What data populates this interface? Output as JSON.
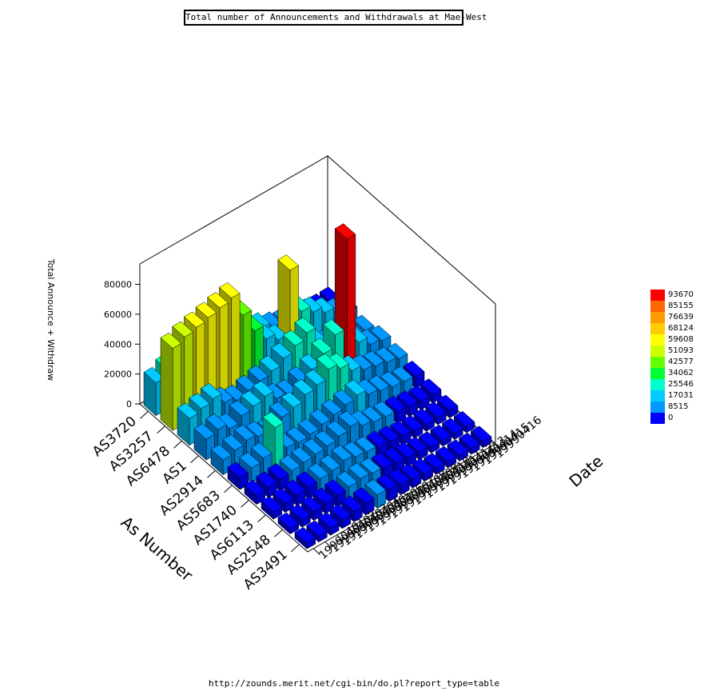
{
  "chart_data": {
    "type": "bar3d",
    "title": "Total number of Announcements and Withdrawals at Mae-West",
    "x_axis_label": "As Number",
    "y_axis_label": "Date",
    "z_axis_label": "Total Announce + Withdraw",
    "as_numbers": [
      "AS3720",
      "AS3257",
      "AS6478",
      "AS1",
      "AS2914",
      "AS5683",
      "AS1740",
      "AS6113",
      "AS2548",
      "AS3491"
    ],
    "dates": [
      "19990401",
      "19990402",
      "19990403",
      "19990404",
      "19990405",
      "19990406",
      "19990407",
      "19990408",
      "19990409",
      "19990410",
      "19990411",
      "19990412",
      "19990413",
      "19990414",
      "19990415",
      "19990416"
    ],
    "z_ticks": [
      "0",
      "20000",
      "40000",
      "60000",
      "80000"
    ],
    "zlim": [
      0,
      93670
    ],
    "colorbar": {
      "values": [
        "93670",
        "85155",
        "76639",
        "68124",
        "59608",
        "51093",
        "42577",
        "34062",
        "25546",
        "17031",
        "8515",
        "0"
      ],
      "colors": [
        "#ff0000",
        "#ff6600",
        "#ff9900",
        "#ffcc00",
        "#ffff00",
        "#ccff00",
        "#66ff00",
        "#00ff33",
        "#00ffcc",
        "#00ccff",
        "#0099ff",
        "#0000ff"
      ]
    },
    "values": [
      [
        22000,
        26000,
        30000,
        24000,
        20000,
        18000,
        16000,
        14000,
        12000,
        18000,
        14000,
        12000,
        10000,
        9000,
        8000,
        8000
      ],
      [
        55000,
        58000,
        60000,
        62000,
        64000,
        66000,
        50000,
        35000,
        25000,
        20000,
        62000,
        30000,
        25000,
        20000,
        15000,
        12000
      ],
      [
        18000,
        20000,
        22000,
        15000,
        12000,
        14000,
        16000,
        18000,
        22000,
        26000,
        30000,
        18000,
        14000,
        12000,
        10000,
        9000
      ],
      [
        14000,
        16000,
        12000,
        16000,
        18000,
        20000,
        14000,
        12000,
        16000,
        20000,
        26000,
        34000,
        93670,
        20000,
        14000,
        12000
      ],
      [
        10000,
        12000,
        14000,
        12000,
        10000,
        16000,
        18000,
        22000,
        24000,
        30000,
        26000,
        20000,
        16000,
        14000,
        12000,
        10000
      ],
      [
        8000,
        10000,
        12000,
        28000,
        10000,
        9000,
        10000,
        12000,
        14000,
        16000,
        18000,
        14000,
        12000,
        10000,
        9000,
        8000
      ],
      [
        6000,
        7000,
        8000,
        9000,
        10000,
        11000,
        12000,
        14000,
        16000,
        12000,
        10000,
        9000,
        8000,
        7000,
        6000,
        6000
      ],
      [
        5000,
        6000,
        7000,
        8000,
        9000,
        10000,
        12000,
        10000,
        9000,
        8000,
        7000,
        6000,
        5000,
        5000,
        5000,
        5000
      ],
      [
        4000,
        5000,
        6000,
        7000,
        8000,
        9000,
        10000,
        9000,
        8000,
        7000,
        6000,
        5000,
        4000,
        4000,
        4000,
        4000
      ],
      [
        4000,
        4000,
        5000,
        6000,
        7000,
        8000,
        9000,
        8000,
        7000,
        6000,
        5000,
        4000,
        4000,
        4000,
        4000,
        4000
      ]
    ]
  },
  "footer_url": "http://zounds.merit.net/cgi-bin/do.pl?report_type=table"
}
